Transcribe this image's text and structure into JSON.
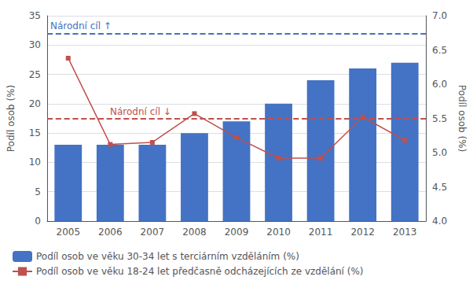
{
  "chart_data": {
    "type": "bar",
    "categories": [
      "2005",
      "2006",
      "2007",
      "2008",
      "2009",
      "2010",
      "2011",
      "2012",
      "2013"
    ],
    "series": [
      {
        "name": "Podíl osob ve věku 30-34 let s terciárním vzděláním (%)",
        "type": "bar",
        "color": "#4472C4",
        "values": [
          13,
          13,
          13,
          15,
          17,
          20,
          24,
          26,
          27
        ]
      },
      {
        "name": "Podíl osob ve věku 18-24 let předčasně odcházejících ze vzdělání (%)",
        "type": "line",
        "color": "#C0504D",
        "marker": "square",
        "axis": "y2",
        "values": [
          6.38,
          5.12,
          5.15,
          5.57,
          5.22,
          4.92,
          4.92,
          5.52,
          5.18
        ]
      }
    ],
    "ylabel": "Podíl osob (%)",
    "y2label": "Podíl osob (%)",
    "ylim": [
      0,
      35
    ],
    "yticks": [
      0,
      5,
      10,
      15,
      20,
      25,
      30,
      35
    ],
    "y2lim": [
      4.0,
      7.0
    ],
    "y2ticks": [
      {
        "value": 4,
        "label": "4.0"
      },
      4.5,
      {
        "value": 5,
        "label": "5.0"
      },
      5.5,
      {
        "value": 6,
        "label": "6.0"
      },
      6.5,
      {
        "value": 7,
        "label": "7.0"
      }
    ],
    "annotations": [
      {
        "text": "Národní cíl ↑",
        "y": 32,
        "color": "#4472C4",
        "line_style": "dashed"
      },
      {
        "text": "Národní cíl ↓",
        "y": 5.5,
        "axis": "y2",
        "color": "#C0504D",
        "line_style": "dashed"
      }
    ],
    "grid": true,
    "legend": "bottom"
  }
}
